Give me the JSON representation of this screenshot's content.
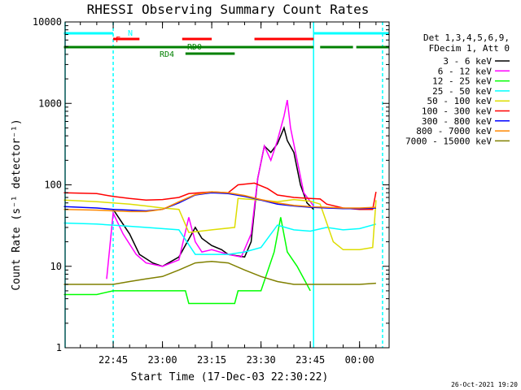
{
  "chart_data": {
    "type": "line",
    "title": "RHESSI Observing Summary Count Rates",
    "xlabel": "Start Time (17-Dec-03 22:30:22)",
    "ylabel": "Count Rate (s⁻¹ detector⁻¹)",
    "y_scale": "log",
    "ylim": [
      1,
      10000
    ],
    "xlim": [
      "22:30:22",
      "00:09:00"
    ],
    "x_ticks": [
      "22:45",
      "23:00",
      "23:15",
      "23:30",
      "23:45",
      "00:00"
    ],
    "y_ticks": [
      "1",
      "10",
      "100",
      "1000",
      "10000"
    ],
    "legend_header": [
      "Det 1,3,4,5,6,9,",
      "FDecim 1, Att 0"
    ],
    "legend_position": "right",
    "timestamp": "26-Oct-2021 19:20",
    "flag_labels": {
      "N": "N",
      "F": "F",
      "RD0": "RD0",
      "RD4": "RD4"
    },
    "series": [
      {
        "name": "3 - 6 keV",
        "color": "#000000",
        "points": [
          [
            "22:45",
            50
          ],
          [
            "22:50",
            25
          ],
          [
            "22:53",
            14
          ],
          [
            "22:57",
            11
          ],
          [
            "23:00",
            10
          ],
          [
            "23:05",
            13
          ],
          [
            "23:10",
            30
          ],
          [
            "23:12",
            22
          ],
          [
            "23:15",
            18
          ],
          [
            "23:18",
            16
          ],
          [
            "23:20",
            14
          ],
          [
            "23:25",
            13
          ],
          [
            "23:27",
            20
          ],
          [
            "23:29",
            120
          ],
          [
            "23:31",
            300
          ],
          [
            "23:33",
            250
          ],
          [
            "23:35",
            320
          ],
          [
            "23:37",
            500
          ],
          [
            "23:38",
            350
          ],
          [
            "23:40",
            250
          ],
          [
            "23:42",
            100
          ],
          [
            "23:44",
            60
          ],
          [
            "23:46",
            50
          ]
        ]
      },
      {
        "name": "6 - 12 keV",
        "color": "#ff00ff",
        "points": [
          [
            "22:43",
            7
          ],
          [
            "22:45",
            45
          ],
          [
            "22:48",
            25
          ],
          [
            "22:52",
            14
          ],
          [
            "22:55",
            11
          ],
          [
            "23:00",
            10
          ],
          [
            "23:05",
            12
          ],
          [
            "23:08",
            40
          ],
          [
            "23:10",
            20
          ],
          [
            "23:12",
            15
          ],
          [
            "23:15",
            16
          ],
          [
            "23:20",
            14
          ],
          [
            "23:24",
            13
          ],
          [
            "23:27",
            25
          ],
          [
            "23:29",
            120
          ],
          [
            "23:31",
            300
          ],
          [
            "23:33",
            200
          ],
          [
            "23:35",
            350
          ],
          [
            "23:37",
            700
          ],
          [
            "23:38",
            1100
          ],
          [
            "23:39",
            500
          ],
          [
            "23:41",
            200
          ],
          [
            "23:43",
            80
          ],
          [
            "23:46",
            55
          ]
        ]
      },
      {
        "name": "12 - 25 keV",
        "color": "#00ff00",
        "points": [
          [
            "22:30",
            4.5
          ],
          [
            "22:40",
            4.5
          ],
          [
            "22:45",
            5
          ],
          [
            "23:00",
            5
          ],
          [
            "23:07",
            5
          ],
          [
            "23:08",
            3.5
          ],
          [
            "23:15",
            3.5
          ],
          [
            "23:22",
            3.5
          ],
          [
            "23:23",
            5
          ],
          [
            "23:30",
            5
          ],
          [
            "23:34",
            15
          ],
          [
            "23:36",
            40
          ],
          [
            "23:38",
            15
          ],
          [
            "23:41",
            10
          ],
          [
            "23:45",
            5
          ]
        ]
      },
      {
        "name": "25 - 50 keV",
        "color": "#00ffff",
        "points": [
          [
            "22:30",
            34
          ],
          [
            "22:40",
            33
          ],
          [
            "22:45",
            32
          ],
          [
            "22:50",
            31
          ],
          [
            "22:55",
            30
          ],
          [
            "23:00",
            29
          ],
          [
            "23:05",
            28
          ],
          [
            "23:10",
            14
          ],
          [
            "23:15",
            14
          ],
          [
            "23:20",
            14
          ],
          [
            "23:25",
            15
          ],
          [
            "23:30",
            17
          ],
          [
            "23:35",
            32
          ],
          [
            "23:40",
            28
          ],
          [
            "23:45",
            27
          ],
          [
            "23:50",
            30
          ],
          [
            "23:55",
            28
          ],
          [
            "00:00",
            29
          ],
          [
            "00:05",
            33
          ]
        ]
      },
      {
        "name": "50 - 100 keV",
        "color": "#dddd00",
        "points": [
          [
            "22:30",
            65
          ],
          [
            "22:40",
            62
          ],
          [
            "22:45",
            60
          ],
          [
            "22:50",
            58
          ],
          [
            "22:55",
            55
          ],
          [
            "23:00",
            52
          ],
          [
            "23:05",
            50
          ],
          [
            "23:08",
            26
          ],
          [
            "23:15",
            28
          ],
          [
            "23:22",
            30
          ],
          [
            "23:23",
            68
          ],
          [
            "23:30",
            65
          ],
          [
            "23:35",
            62
          ],
          [
            "23:40",
            66
          ],
          [
            "23:45",
            63
          ],
          [
            "23:48",
            58
          ],
          [
            "23:52",
            20
          ],
          [
            "23:55",
            16
          ],
          [
            "00:00",
            16
          ],
          [
            "00:04",
            17
          ],
          [
            "00:05",
            65
          ]
        ]
      },
      {
        "name": "100 - 300 keV",
        "color": "#ff0000",
        "points": [
          [
            "22:30",
            80
          ],
          [
            "22:40",
            78
          ],
          [
            "22:45",
            72
          ],
          [
            "22:50",
            68
          ],
          [
            "22:55",
            65
          ],
          [
            "23:00",
            66
          ],
          [
            "23:05",
            70
          ],
          [
            "23:08",
            78
          ],
          [
            "23:15",
            82
          ],
          [
            "23:20",
            80
          ],
          [
            "23:23",
            100
          ],
          [
            "23:28",
            105
          ],
          [
            "23:32",
            90
          ],
          [
            "23:35",
            75
          ],
          [
            "23:40",
            70
          ],
          [
            "23:45",
            68
          ],
          [
            "23:48",
            67
          ],
          [
            "23:50",
            58
          ],
          [
            "23:55",
            52
          ],
          [
            "00:00",
            50
          ],
          [
            "00:04",
            50
          ],
          [
            "00:05",
            82
          ]
        ]
      },
      {
        "name": "300 - 800 keV",
        "color": "#0000ff",
        "points": [
          [
            "22:30",
            54
          ],
          [
            "22:40",
            52
          ],
          [
            "22:45",
            50
          ],
          [
            "22:50",
            49
          ],
          [
            "22:55",
            48
          ],
          [
            "23:00",
            50
          ],
          [
            "23:05",
            60
          ],
          [
            "23:10",
            75
          ],
          [
            "23:15",
            80
          ],
          [
            "23:20",
            78
          ],
          [
            "23:25",
            72
          ],
          [
            "23:30",
            65
          ],
          [
            "23:35",
            58
          ],
          [
            "23:40",
            55
          ],
          [
            "23:45",
            53
          ],
          [
            "23:50",
            52
          ],
          [
            "23:55",
            51
          ],
          [
            "00:00",
            51
          ],
          [
            "00:05",
            52
          ]
        ]
      },
      {
        "name": "800 - 7000 keV",
        "color": "#ff8800",
        "points": [
          [
            "22:30",
            50
          ],
          [
            "22:40",
            49
          ],
          [
            "22:45",
            48
          ],
          [
            "22:50",
            47
          ],
          [
            "22:55",
            47
          ],
          [
            "23:00",
            50
          ],
          [
            "23:05",
            62
          ],
          [
            "23:10",
            76
          ],
          [
            "23:15",
            82
          ],
          [
            "23:20",
            80
          ],
          [
            "23:25",
            74
          ],
          [
            "23:30",
            66
          ],
          [
            "23:35",
            60
          ],
          [
            "23:40",
            56
          ],
          [
            "23:45",
            54
          ],
          [
            "23:50",
            53
          ],
          [
            "23:55",
            52
          ],
          [
            "00:00",
            52
          ],
          [
            "00:05",
            53
          ]
        ]
      },
      {
        "name": "7000 - 15000 keV",
        "color": "#808000",
        "points": [
          [
            "22:30",
            6
          ],
          [
            "22:40",
            6
          ],
          [
            "22:45",
            6
          ],
          [
            "22:50",
            6.5
          ],
          [
            "22:55",
            7
          ],
          [
            "23:00",
            7.5
          ],
          [
            "23:05",
            9
          ],
          [
            "23:10",
            11
          ],
          [
            "23:15",
            11.5
          ],
          [
            "23:20",
            11
          ],
          [
            "23:25",
            9
          ],
          [
            "23:30",
            7.5
          ],
          [
            "23:35",
            6.5
          ],
          [
            "23:40",
            6
          ],
          [
            "23:45",
            6
          ],
          [
            "23:50",
            6
          ],
          [
            "23:55",
            6
          ],
          [
            "00:00",
            6
          ],
          [
            "00:05",
            6.2
          ]
        ]
      }
    ],
    "flags": [
      {
        "name": "N",
        "color": "#00ffff",
        "segments": [
          [
            "22:30",
            "22:45"
          ],
          [
            "23:46",
            "00:09"
          ]
        ]
      },
      {
        "name": "F",
        "color": "#ff0000",
        "segments": [
          [
            "22:45",
            "22:53"
          ],
          [
            "23:06",
            "23:15"
          ],
          [
            "23:28",
            "23:46"
          ]
        ]
      },
      {
        "name": "RD0",
        "color": "#008000",
        "segments": [
          [
            "22:30",
            "23:46"
          ],
          [
            "23:48",
            "23:58"
          ],
          [
            "23:59",
            "00:09"
          ]
        ]
      },
      {
        "name": "RD4",
        "color": "#008000",
        "segments": [
          [
            "23:07",
            "23:22"
          ]
        ]
      }
    ],
    "vlines": [
      {
        "time": "22:30:22",
        "color": "#00ffff",
        "style": "solid"
      },
      {
        "time": "22:45",
        "color": "#00ffff",
        "style": "dashed"
      },
      {
        "time": "23:46",
        "color": "#00ffff",
        "style": "solid"
      },
      {
        "time": "00:07",
        "color": "#00ffff",
        "style": "dashed"
      }
    ]
  }
}
